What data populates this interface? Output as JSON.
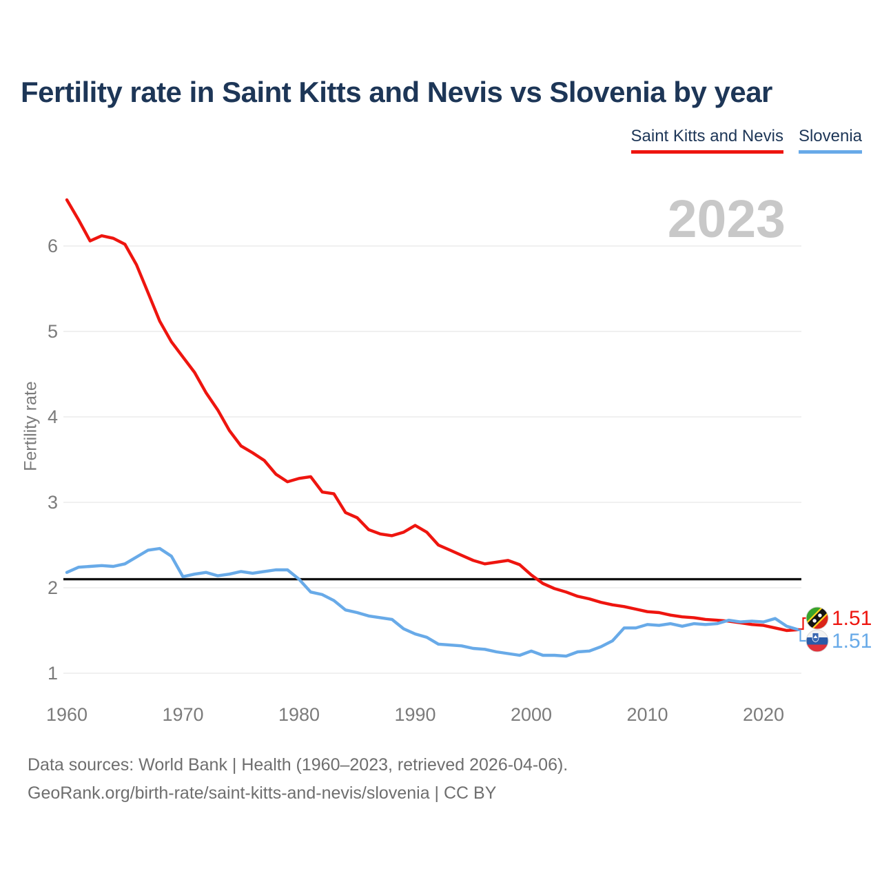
{
  "title": "Fertility rate in Saint Kitts and Nevis vs Slovenia by year",
  "legend": [
    {
      "label": "Saint Kitts and Nevis",
      "color": "#ee150f"
    },
    {
      "label": "Slovenia",
      "color": "#68aae8"
    }
  ],
  "watermark": "2023",
  "ylabel": "Fertility rate",
  "end_labels": [
    {
      "value": "1.51",
      "color": "#ee150f",
      "flag": "saint-kitts-and-nevis"
    },
    {
      "value": "1.51",
      "color": "#68aae8",
      "flag": "slovenia"
    }
  ],
  "footer": {
    "line1": "Data sources: World Bank | Health (1960–2023, retrieved 2026-04-06).",
    "line2": "GeoRank.org/birth-rate/saint-kitts-and-nevis/slovenia | CC BY"
  },
  "chart_data": {
    "type": "line",
    "title": "Fertility rate in Saint Kitts and Nevis vs Slovenia by year",
    "xlabel": "",
    "ylabel": "Fertility rate",
    "grid": "horizontal",
    "ylim": [
      1,
      6.6
    ],
    "yticks": [
      1,
      2,
      3,
      4,
      5,
      6
    ],
    "xticks": [
      1960,
      1970,
      1980,
      1990,
      2000,
      2010,
      2020
    ],
    "x": [
      1960,
      1961,
      1962,
      1963,
      1964,
      1965,
      1966,
      1967,
      1968,
      1969,
      1970,
      1971,
      1972,
      1973,
      1974,
      1975,
      1976,
      1977,
      1978,
      1979,
      1980,
      1981,
      1982,
      1983,
      1984,
      1985,
      1986,
      1987,
      1988,
      1989,
      1990,
      1991,
      1992,
      1993,
      1994,
      1995,
      1996,
      1997,
      1998,
      1999,
      2000,
      2001,
      2002,
      2003,
      2004,
      2005,
      2006,
      2007,
      2008,
      2009,
      2010,
      2011,
      2012,
      2013,
      2014,
      2015,
      2016,
      2017,
      2018,
      2019,
      2020,
      2021,
      2022,
      2023
    ],
    "series": [
      {
        "name": "Saint Kitts and Nevis",
        "color": "#ee150f",
        "values": [
          6.54,
          6.31,
          6.06,
          6.12,
          6.09,
          6.02,
          5.78,
          5.45,
          5.12,
          4.88,
          4.7,
          4.52,
          4.28,
          4.08,
          3.84,
          3.66,
          3.58,
          3.49,
          3.33,
          3.24,
          3.28,
          3.3,
          3.12,
          3.1,
          2.88,
          2.82,
          2.68,
          2.63,
          2.61,
          2.65,
          2.73,
          2.65,
          2.5,
          2.44,
          2.38,
          2.32,
          2.28,
          2.3,
          2.32,
          2.27,
          2.15,
          2.05,
          1.99,
          1.95,
          1.9,
          1.87,
          1.83,
          1.8,
          1.78,
          1.75,
          1.72,
          1.71,
          1.68,
          1.66,
          1.65,
          1.63,
          1.62,
          1.61,
          1.59,
          1.57,
          1.56,
          1.53,
          1.5,
          1.51
        ]
      },
      {
        "name": "Slovenia",
        "color": "#68aae8",
        "values": [
          2.18,
          2.24,
          2.25,
          2.26,
          2.25,
          2.28,
          2.36,
          2.44,
          2.46,
          2.37,
          2.13,
          2.16,
          2.18,
          2.14,
          2.16,
          2.19,
          2.17,
          2.19,
          2.21,
          2.21,
          2.1,
          1.95,
          1.92,
          1.85,
          1.74,
          1.71,
          1.67,
          1.65,
          1.63,
          1.52,
          1.46,
          1.42,
          1.34,
          1.33,
          1.32,
          1.29,
          1.28,
          1.25,
          1.23,
          1.21,
          1.26,
          1.21,
          1.21,
          1.2,
          1.25,
          1.26,
          1.31,
          1.38,
          1.53,
          1.53,
          1.57,
          1.56,
          1.58,
          1.55,
          1.58,
          1.57,
          1.58,
          1.62,
          1.6,
          1.61,
          1.6,
          1.64,
          1.55,
          1.51
        ]
      }
    ],
    "reference_line": {
      "value": 2.1,
      "color": "#111111"
    },
    "final_year_label": "2023"
  }
}
